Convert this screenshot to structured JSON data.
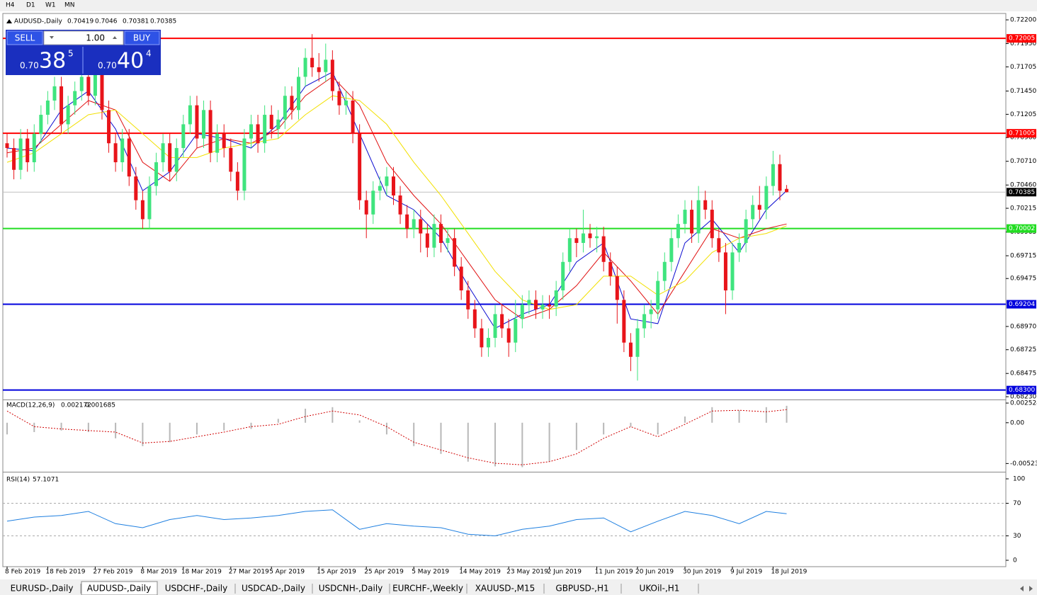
{
  "toolbar": [
    "H4",
    "D1",
    "W1",
    "MN"
  ],
  "trade_panel": {
    "sell": "SELL",
    "buy": "BUY",
    "lots": "1.00",
    "bid": {
      "prefix": "0.70",
      "big": "38",
      "small": "5"
    },
    "ask": {
      "prefix": "0.70",
      "big": "40",
      "small": "4"
    }
  },
  "tabs": [
    "EURUSD-,Daily",
    "AUDUSD-,Daily",
    "USDCHF-,Daily",
    "USDCAD-,Daily",
    "USDCNH-,Daily",
    "EURCHF-,Weekly",
    "XAUUSD-,M15",
    "GBPUSD-,H1",
    "UKOil-,H1"
  ],
  "active_tab": 1,
  "chart_data": {
    "type": "candlestick",
    "title": "AUDUSD-,Daily",
    "up_color": "#3fe47e",
    "down_color": "#e8141a",
    "grid": false,
    "categories": [
      "8 Feb 2019",
      null,
      null,
      null,
      null,
      null,
      "18 Feb 2019",
      null,
      null,
      null,
      null,
      null,
      null,
      "27 Feb 2019",
      null,
      null,
      null,
      null,
      null,
      null,
      "8 Mar 2019",
      null,
      null,
      null,
      null,
      null,
      "18 Mar 2019",
      null,
      null,
      null,
      null,
      null,
      null,
      "27 Mar 2019",
      null,
      null,
      null,
      null,
      null,
      "5 Apr 2019",
      null,
      null,
      null,
      null,
      null,
      null,
      "15 Apr 2019",
      null,
      null,
      null,
      null,
      null,
      null,
      "25 Apr 2019",
      null,
      null,
      null,
      null,
      null,
      null,
      "5 May 2019",
      null,
      null,
      null,
      null,
      null,
      null,
      "14 May 2019",
      null,
      null,
      null,
      null,
      null,
      null,
      "23 May 2019",
      null,
      null,
      null,
      null,
      null,
      "2 Jun 2019",
      null,
      null,
      null,
      null,
      null,
      null,
      "11 Jun 2019",
      null,
      null,
      null,
      null,
      null,
      "20 Jun 2019",
      null,
      null,
      null,
      null,
      null,
      null,
      "30 Jun 2019",
      null,
      null,
      null,
      null,
      null,
      null,
      "9 Jul 2019",
      null,
      null,
      null,
      null,
      null,
      "18 Jul 2019",
      null,
      null
    ],
    "open": [
      0.709,
      0.7085,
      0.7062,
      0.7095,
      0.707,
      0.71,
      0.712,
      0.7135,
      0.715,
      0.711,
      0.713,
      0.7145,
      0.716,
      0.714,
      0.7165,
      0.7125,
      0.709,
      0.707,
      0.7095,
      0.7055,
      0.703,
      0.701,
      0.7045,
      0.707,
      0.709,
      0.706,
      0.7085,
      0.711,
      0.713,
      0.7095,
      0.7125,
      0.708,
      0.71,
      0.7085,
      0.706,
      0.704,
      0.7095,
      0.711,
      0.709,
      0.712,
      0.7105,
      0.7115,
      0.714,
      0.7125,
      0.716,
      0.718,
      0.717,
      0.7165,
      0.7178,
      0.7145,
      0.713,
      0.7135,
      0.71,
      0.703,
      0.7015,
      0.704,
      0.7045,
      0.7055,
      0.7035,
      0.7015,
      0.7,
      0.701,
      0.6995,
      0.698,
      0.7005,
      0.6985,
      0.699,
      0.696,
      0.6935,
      0.6915,
      0.6895,
      0.6875,
      0.6885,
      0.691,
      0.6895,
      0.688,
      0.6905,
      0.692,
      0.6925,
      0.6915,
      0.692,
      0.6918,
      0.6935,
      0.6965,
      0.699,
      0.6985,
      0.6995,
      0.699,
      0.6992,
      0.6965,
      0.695,
      0.6925,
      0.688,
      0.6865,
      0.6895,
      0.691,
      0.6915,
      0.6945,
      0.6965,
      0.699,
      0.7005,
      0.702,
      0.6995,
      0.703,
      0.702,
      0.699,
      0.6975,
      0.6935,
      0.6975,
      0.6985,
      0.701,
      0.7025,
      0.702,
      0.7045,
      0.7068,
      0.70419
    ],
    "high": [
      0.71,
      0.7095,
      0.7105,
      0.7105,
      0.711,
      0.713,
      0.7145,
      0.716,
      0.716,
      0.714,
      0.7155,
      0.717,
      0.717,
      0.7175,
      0.7175,
      0.7135,
      0.71,
      0.7105,
      0.7105,
      0.7065,
      0.704,
      0.7055,
      0.708,
      0.71,
      0.71,
      0.7095,
      0.712,
      0.714,
      0.714,
      0.7135,
      0.7135,
      0.711,
      0.711,
      0.7095,
      0.707,
      0.7105,
      0.712,
      0.712,
      0.713,
      0.713,
      0.7125,
      0.715,
      0.715,
      0.717,
      0.719,
      0.7205,
      0.7185,
      0.7195,
      0.7188,
      0.7155,
      0.7145,
      0.7145,
      0.711,
      0.704,
      0.705,
      0.7055,
      0.7065,
      0.7065,
      0.7045,
      0.7025,
      0.702,
      0.702,
      0.7005,
      0.7015,
      0.7015,
      0.7,
      0.7,
      0.697,
      0.6945,
      0.6925,
      0.6905,
      0.6895,
      0.692,
      0.692,
      0.6905,
      0.6925,
      0.693,
      0.6935,
      0.6935,
      0.693,
      0.693,
      0.6945,
      0.6975,
      0.7,
      0.7,
      0.702,
      0.7005,
      0.7002,
      0.7002,
      0.6975,
      0.696,
      0.6935,
      0.689,
      0.6905,
      0.692,
      0.6925,
      0.6955,
      0.6975,
      0.7,
      0.7015,
      0.703,
      0.703,
      0.7045,
      0.704,
      0.703,
      0.7,
      0.6985,
      0.6985,
      0.6995,
      0.702,
      0.7035,
      0.7045,
      0.7055,
      0.7082,
      0.7078,
      0.7046
    ],
    "low": [
      0.7075,
      0.7052,
      0.7052,
      0.706,
      0.706,
      0.709,
      0.711,
      0.7125,
      0.71,
      0.71,
      0.712,
      0.7135,
      0.713,
      0.713,
      0.7115,
      0.708,
      0.706,
      0.706,
      0.7045,
      0.702,
      0.7,
      0.7,
      0.7035,
      0.706,
      0.705,
      0.705,
      0.7075,
      0.71,
      0.7085,
      0.7085,
      0.707,
      0.707,
      0.7075,
      0.705,
      0.703,
      0.703,
      0.7085,
      0.708,
      0.708,
      0.7095,
      0.7095,
      0.7105,
      0.7115,
      0.7115,
      0.715,
      0.716,
      0.7155,
      0.7155,
      0.7135,
      0.712,
      0.712,
      0.709,
      0.702,
      0.699,
      0.7005,
      0.703,
      0.7035,
      0.7025,
      0.7005,
      0.699,
      0.699,
      0.6975,
      0.697,
      0.697,
      0.6975,
      0.6975,
      0.695,
      0.6925,
      0.6905,
      0.6885,
      0.6865,
      0.6865,
      0.6875,
      0.6885,
      0.6865,
      0.687,
      0.6895,
      0.691,
      0.6905,
      0.6905,
      0.6905,
      0.6908,
      0.6925,
      0.6955,
      0.697,
      0.6975,
      0.698,
      0.6975,
      0.6955,
      0.694,
      0.69,
      0.687,
      0.685,
      0.684,
      0.6885,
      0.6895,
      0.6905,
      0.6935,
      0.6955,
      0.698,
      0.6995,
      0.6985,
      0.6985,
      0.701,
      0.698,
      0.6965,
      0.691,
      0.6925,
      0.6965,
      0.6975,
      0.7,
      0.701,
      0.701,
      0.7035,
      0.703,
      0.70381
    ],
    "close": [
      0.7085,
      0.7062,
      0.7095,
      0.707,
      0.71,
      0.712,
      0.7135,
      0.715,
      0.711,
      0.713,
      0.7145,
      0.716,
      0.714,
      0.7165,
      0.7125,
      0.709,
      0.707,
      0.7095,
      0.7055,
      0.703,
      0.701,
      0.7045,
      0.707,
      0.709,
      0.706,
      0.7085,
      0.711,
      0.713,
      0.7095,
      0.7125,
      0.708,
      0.71,
      0.7085,
      0.706,
      0.704,
      0.7095,
      0.711,
      0.709,
      0.712,
      0.7105,
      0.7115,
      0.714,
      0.7125,
      0.716,
      0.718,
      0.717,
      0.7165,
      0.7178,
      0.7145,
      0.713,
      0.7135,
      0.71,
      0.703,
      0.7015,
      0.704,
      0.7045,
      0.7055,
      0.7035,
      0.7015,
      0.7,
      0.701,
      0.6995,
      0.698,
      0.7005,
      0.6985,
      0.699,
      0.696,
      0.6935,
      0.6915,
      0.6895,
      0.6875,
      0.6885,
      0.691,
      0.6895,
      0.688,
      0.6905,
      0.692,
      0.6925,
      0.6915,
      0.692,
      0.6918,
      0.6935,
      0.6965,
      0.699,
      0.6985,
      0.6995,
      0.699,
      0.6992,
      0.6965,
      0.695,
      0.6925,
      0.688,
      0.6865,
      0.6895,
      0.691,
      0.6915,
      0.6945,
      0.6965,
      0.699,
      0.7005,
      0.702,
      0.6995,
      0.703,
      0.702,
      0.699,
      0.6975,
      0.6935,
      0.6975,
      0.6985,
      0.701,
      0.7025,
      0.702,
      0.7045,
      0.7068,
      0.704,
      0.70385
    ],
    "ylim": [
      0.68208,
      0.7226
    ],
    "yticks": [
      {
        "value": 0.722,
        "label": "0.72200"
      },
      {
        "value": 0.7195,
        "label": "0.71950"
      },
      0.71705,
      {
        "value": 0.7145,
        "label": "0.71450"
      },
      0.71205,
      {
        "value": 0.7096,
        "label": "0.70960"
      },
      {
        "value": 0.7071,
        "label": "0.70710"
      },
      {
        "value": 0.7046,
        "label": "0.70460"
      },
      0.70215,
      0.69965,
      0.69715,
      0.69475,
      {
        "value": 0.6897,
        "label": "0.68970"
      },
      0.68725,
      0.68475,
      {
        "value": 0.6823,
        "label": "0.68230"
      }
    ],
    "levels": [
      {
        "value": 0.72005,
        "color": "#ff0000"
      },
      {
        "value": 0.71005,
        "color": "#ff0000"
      },
      {
        "value": 0.70002,
        "color": "#22dd22"
      },
      {
        "value": 0.69204,
        "color": "#0000dd"
      },
      {
        "value": {
          "value": 0.683,
          "label": "0.68300"
        },
        "color": "#0000dd"
      }
    ],
    "current_price": 0.70385,
    "moving_averages": [
      {
        "color": "#0a0ad0",
        "x": [
          0,
          4,
          8,
          12,
          16,
          20,
          24,
          28,
          32,
          36,
          40,
          44,
          48,
          52,
          56,
          60,
          64,
          68,
          72,
          76,
          80,
          84,
          88,
          92,
          96,
          100,
          104,
          108,
          112,
          115
        ],
        "values": [
          0.7085,
          0.7082,
          0.7125,
          0.7145,
          0.7105,
          0.704,
          0.706,
          0.71,
          0.7095,
          0.7085,
          0.711,
          0.715,
          0.7165,
          0.71,
          0.7035,
          0.702,
          0.699,
          0.694,
          0.6895,
          0.691,
          0.692,
          0.6965,
          0.6985,
          0.6905,
          0.69,
          0.6985,
          0.701,
          0.6975,
          0.702,
          0.704
        ]
      },
      {
        "color": "#e01010",
        "x": [
          0,
          4,
          8,
          12,
          16,
          20,
          24,
          28,
          32,
          36,
          40,
          44,
          48,
          52,
          56,
          60,
          64,
          68,
          72,
          76,
          80,
          84,
          88,
          92,
          96,
          100,
          104,
          108,
          112,
          115
        ],
        "values": [
          0.708,
          0.7085,
          0.711,
          0.7135,
          0.7125,
          0.707,
          0.705,
          0.7085,
          0.7095,
          0.709,
          0.7105,
          0.714,
          0.716,
          0.713,
          0.707,
          0.7035,
          0.7005,
          0.6965,
          0.6925,
          0.6905,
          0.6915,
          0.694,
          0.6975,
          0.6945,
          0.691,
          0.6955,
          0.7,
          0.699,
          0.7,
          0.7005
        ]
      },
      {
        "color": "#f2e000",
        "x": [
          0,
          4,
          8,
          12,
          16,
          20,
          24,
          28,
          32,
          36,
          40,
          44,
          48,
          52,
          56,
          60,
          64,
          68,
          72,
          76,
          80,
          84,
          88,
          92,
          96,
          100,
          104,
          108,
          112,
          115
        ],
        "values": [
          0.707,
          0.708,
          0.71,
          0.712,
          0.7125,
          0.71,
          0.7075,
          0.7075,
          0.7085,
          0.709,
          0.7095,
          0.712,
          0.714,
          0.7135,
          0.711,
          0.707,
          0.7035,
          0.6995,
          0.6955,
          0.6925,
          0.6915,
          0.692,
          0.695,
          0.695,
          0.693,
          0.6945,
          0.6975,
          0.699,
          0.6995,
          0.7003
        ]
      }
    ],
    "macd": {
      "title": "MACD(12,26,9)",
      "ylim": [
        -0.0062,
        0.0028
      ],
      "yticks": [
        0.002524,
        {
          "value": 0,
          "label": "0.00"
        },
        -0.005234
      ],
      "x": [
        0,
        4,
        8,
        12,
        16,
        20,
        24,
        28,
        32,
        36,
        40,
        44,
        48,
        52,
        56,
        60,
        64,
        68,
        72,
        76,
        80,
        84,
        88,
        92,
        96,
        100,
        104,
        108,
        112,
        115
      ],
      "histogram": [
        -0.0015,
        -0.0012,
        -0.001,
        -0.0012,
        -0.002,
        -0.003,
        -0.0025,
        -0.0015,
        -0.001,
        -0.0008,
        0.0005,
        0.0018,
        0.002,
        0.0003,
        -0.0015,
        -0.003,
        -0.004,
        -0.005,
        -0.0056,
        -0.0057,
        -0.005,
        -0.0035,
        -0.0015,
        -0.0005,
        -0.0015,
        0.0008,
        0.002,
        0.0016,
        0.002,
        0.002172
      ],
      "signal": [
        0.0015,
        -0.0005,
        -0.0008,
        -0.001,
        -0.0012,
        -0.0026,
        -0.0024,
        -0.0018,
        -0.0012,
        -0.0005,
        -0.0002,
        0.0008,
        0.0015,
        0.001,
        -0.0005,
        -0.0025,
        -0.0035,
        -0.0045,
        -0.0052,
        -0.0054,
        -0.005,
        -0.004,
        -0.002,
        -0.0005,
        -0.0018,
        -0.0002,
        0.0015,
        0.0016,
        0.0014,
        0.001685
      ]
    },
    "rsi": {
      "title": "RSI(14)",
      "ylim": [
        0,
        100
      ],
      "yticks": [
        100,
        70,
        30,
        0
      ],
      "levels": [
        70,
        30
      ],
      "color": "#1e7fe0",
      "x": [
        0,
        4,
        8,
        12,
        16,
        20,
        24,
        28,
        32,
        36,
        40,
        44,
        48,
        52,
        56,
        60,
        64,
        68,
        72,
        76,
        80,
        84,
        88,
        92,
        96,
        100,
        104,
        108,
        112,
        115
      ],
      "values": [
        48,
        53,
        55,
        60,
        45,
        40,
        50,
        55,
        50,
        52,
        55,
        60,
        62,
        38,
        45,
        42,
        40,
        32,
        30,
        38,
        42,
        50,
        52,
        35,
        48,
        60,
        55,
        45,
        60,
        57.1071
      ]
    }
  }
}
